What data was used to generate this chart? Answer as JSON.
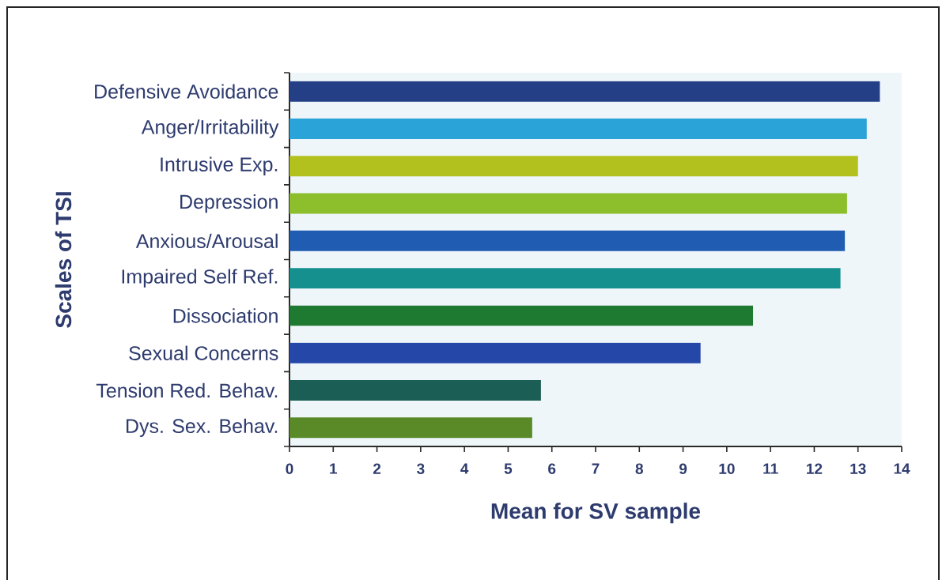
{
  "chart_data": {
    "type": "bar",
    "orientation": "horizontal",
    "xlabel": "Mean for SV sample",
    "ylabel": "Scales of TSI",
    "categories": [
      "Defensive Avoidance",
      "Anger/Irritability",
      "Intrusive Exp.",
      "Depression",
      "Anxious/Arousal",
      "Impaired Self Ref.",
      "Dissociation",
      "Sexual Concerns",
      "Tension Red. Behav.",
      "Dys. Sex. Behav."
    ],
    "values": [
      13.5,
      13.2,
      13.0,
      12.75,
      12.7,
      12.6,
      10.6,
      9.4,
      5.75,
      5.55
    ],
    "colors": [
      "#243f86",
      "#2aa3d8",
      "#b3c11f",
      "#8cbf2b",
      "#1f5cb2",
      "#16908f",
      "#1f7a31",
      "#2547a8",
      "#1b5e55",
      "#5a8a28"
    ],
    "xlim": [
      0,
      14
    ],
    "xticks": [
      0,
      1,
      2,
      3,
      4,
      5,
      6,
      7,
      8,
      9,
      10,
      11,
      12,
      13,
      14
    ]
  }
}
